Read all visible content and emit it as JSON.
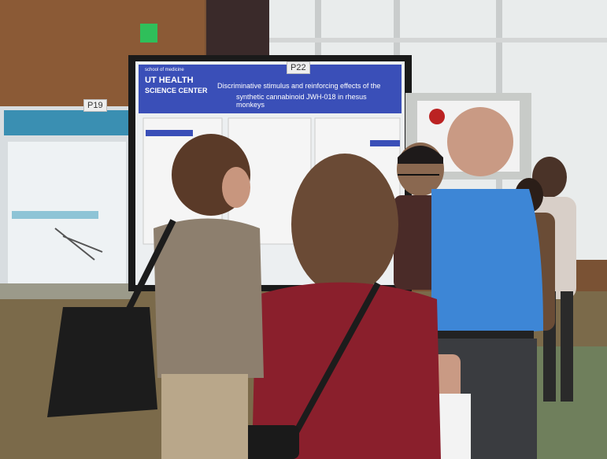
{
  "board_labels": {
    "left": "P19",
    "center": "P22"
  },
  "poster": {
    "logo_top": "school of medicine",
    "logo_main_1": "UT HEALTH",
    "logo_main_2": "SCIENCE CENTER",
    "title_line_1": "Discriminative stimulus and reinforcing effects of the",
    "title_line_2": "synthetic cannabinoid JWH-018 in rhesus monkeys"
  }
}
